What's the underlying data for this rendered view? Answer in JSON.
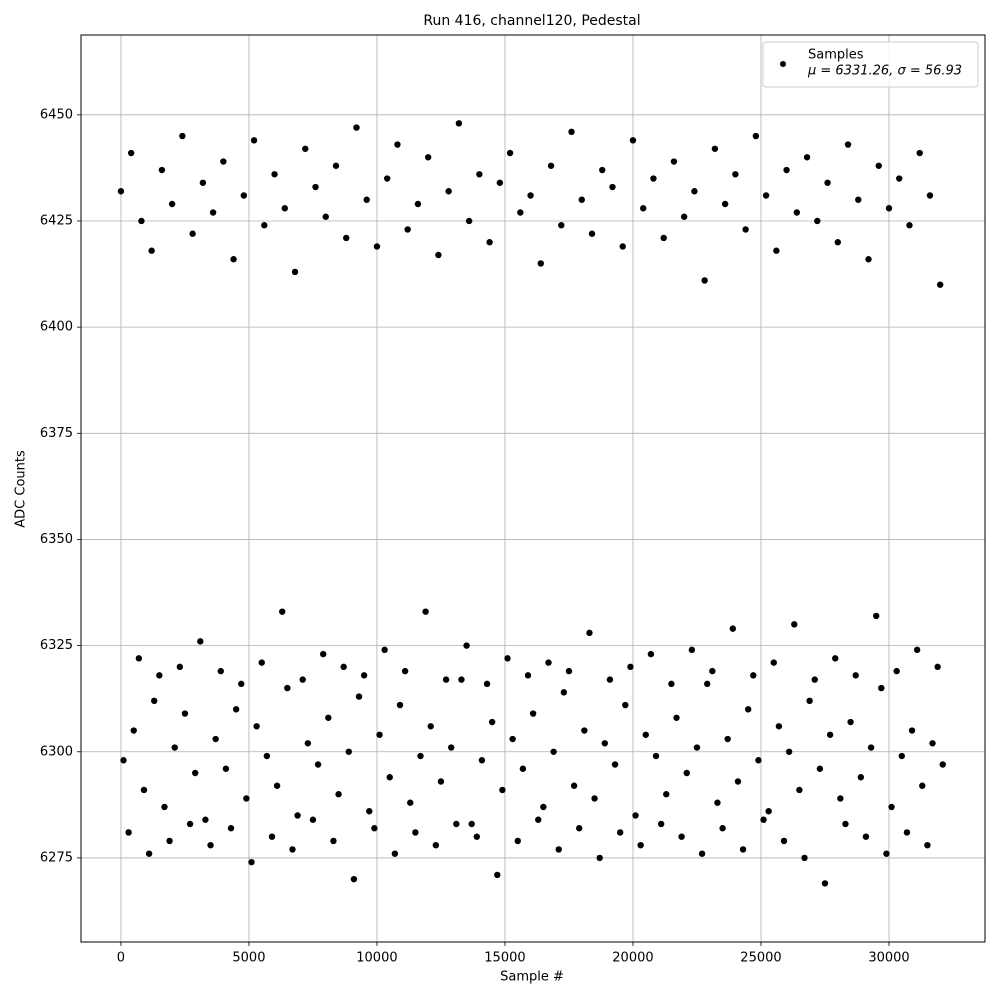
{
  "chart_data": {
    "type": "scatter",
    "title": "Run 416, channel120, Pedestal",
    "x_label": "Sample #",
    "y_label": "ADC Counts",
    "xlim": [
      -1560,
      33750
    ],
    "ylim": [
      6255.2,
      6468.8
    ],
    "xticks": [
      0,
      5000,
      10000,
      15000,
      20000,
      25000,
      30000
    ],
    "yticks": [
      6275,
      6300,
      6325,
      6350,
      6375,
      6400,
      6425,
      6450
    ],
    "grid": true,
    "legend": "upper right",
    "series": [
      {
        "name": "Samples",
        "legend_note": "μ = 6331.26, σ = 56.93",
        "color": "#000000",
        "x": [
          0,
          400,
          800,
          1200,
          1600,
          2000,
          2400,
          2800,
          3200,
          3600,
          4000,
          4400,
          4800,
          5200,
          5600,
          6000,
          6400,
          6800,
          7200,
          7600,
          8000,
          8400,
          8800,
          9200,
          9600,
          10000,
          10400,
          10800,
          11200,
          11600,
          12000,
          12400,
          12800,
          13200,
          13600,
          14000,
          14400,
          14800,
          15200,
          15600,
          16000,
          16400,
          16800,
          17200,
          17600,
          18000,
          18400,
          18800,
          19200,
          19600,
          20000,
          20400,
          20800,
          21200,
          21600,
          22000,
          22400,
          22800,
          23200,
          23600,
          24000,
          24400,
          24800,
          25200,
          25600,
          26000,
          26400,
          26800,
          27200,
          27600,
          28000,
          28400,
          28800,
          29200,
          29600,
          30000,
          30400,
          30800,
          31200,
          31600,
          32000,
          100,
          500,
          900,
          1300,
          1700,
          2100,
          2500,
          2900,
          3300,
          3700,
          4100,
          4500,
          4900,
          5300,
          5700,
          6100,
          6500,
          6900,
          7300,
          7700,
          8100,
          8500,
          8900,
          9300,
          9700,
          10100,
          10500,
          10900,
          11300,
          11700,
          12100,
          12500,
          12900,
          13300,
          13700,
          14100,
          14500,
          14900,
          15300,
          15700,
          16100,
          16500,
          16900,
          17300,
          17700,
          18100,
          18500,
          18900,
          19300,
          19700,
          20100,
          20500,
          20900,
          21300,
          21700,
          22100,
          22500,
          22900,
          23300,
          23700,
          24100,
          24500,
          24900,
          25300,
          25700,
          26100,
          26500,
          26900,
          27300,
          27700,
          28100,
          28500,
          28900,
          29300,
          29700,
          30100,
          30500,
          30900,
          31300,
          31700,
          32100,
          300,
          700,
          1100,
          1500,
          1900,
          2300,
          2700,
          3100,
          3500,
          3900,
          4300,
          4700,
          5100,
          5500,
          5900,
          6300,
          6700,
          7100,
          7500,
          7900,
          8300,
          8700,
          9100,
          9500,
          9900,
          10300,
          10700,
          11100,
          11500,
          11900,
          12300,
          12700,
          13100,
          13500,
          13900,
          14300,
          14700,
          15100,
          15500,
          15900,
          16300,
          16700,
          17100,
          17500,
          17900,
          18300,
          18700,
          19100,
          19500,
          19900,
          20300,
          20700,
          21100,
          21500,
          21900,
          22300,
          22700,
          23100,
          23500,
          23900,
          24300,
          24700,
          25100,
          25500,
          25900,
          26300,
          26700,
          27100,
          27500,
          27900,
          28300,
          28700,
          29100,
          29500,
          29900,
          30300,
          30700,
          31100,
          31500,
          31900
        ],
        "values": [
          6432,
          6441,
          6425,
          6418,
          6437,
          6429,
          6445,
          6422,
          6434,
          6427,
          6439,
          6416,
          6431,
          6444,
          6424,
          6436,
          6428,
          6413,
          6442,
          6433,
          6426,
          6438,
          6421,
          6447,
          6430,
          6419,
          6435,
          6443,
          6423,
          6429,
          6440,
          6417,
          6432,
          6448,
          6425,
          6436,
          6420,
          6434,
          6441,
          6427,
          6431,
          6415,
          6438,
          6424,
          6446,
          6430,
          6422,
          6437,
          6433,
          6419,
          6444,
          6428,
          6435,
          6421,
          6439,
          6426,
          6432,
          6411,
          6442,
          6429,
          6436,
          6423,
          6445,
          6431,
          6418,
          6437,
          6427,
          6440,
          6425,
          6434,
          6420,
          6443,
          6430,
          6416,
          6438,
          6428,
          6435,
          6424,
          6441,
          6431,
          6410,
          6298,
          6305,
          6291,
          6312,
          6287,
          6301,
          6309,
          6295,
          6284,
          6303,
          6296,
          6310,
          6289,
          6306,
          6299,
          6292,
          6315,
          6285,
          6302,
          6297,
          6308,
          6290,
          6300,
          6313,
          6286,
          6304,
          6294,
          6311,
          6288,
          6299,
          6306,
          6293,
          6301,
          6317,
          6283,
          6298,
          6307,
          6291,
          6303,
          6296,
          6309,
          6287,
          6300,
          6314,
          6292,
          6305,
          6289,
          6302,
          6297,
          6311,
          6285,
          6304,
          6299,
          6290,
          6308,
          6295,
          6301,
          6316,
          6288,
          6303,
          6293,
          6310,
          6298,
          6286,
          6306,
          6300,
          6291,
          6312,
          6296,
          6304,
          6289,
          6307,
          6294,
          6301,
          6315,
          6287,
          6299,
          6305,
          6292,
          6302,
          6297,
          6281,
          6322,
          6276,
          6318,
          6279,
          6320,
          6283,
          6326,
          6278,
          6319,
          6282,
          6316,
          6274,
          6321,
          6280,
          6333,
          6277,
          6317,
          6284,
          6323,
          6279,
          6320,
          6270,
          6318,
          6282,
          6324,
          6276,
          6319,
          6281,
          6333,
          6278,
          6317,
          6283,
          6325,
          6280,
          6316,
          6271,
          6322,
          6279,
          6318,
          6284,
          6321,
          6277,
          6319,
          6282,
          6328,
          6275,
          6317,
          6281,
          6320,
          6278,
          6323,
          6283,
          6316,
          6280,
          6324,
          6276,
          6319,
          6282,
          6329,
          6277,
          6318,
          6284,
          6321,
          6279,
          6330,
          6275,
          6317,
          6269,
          6322,
          6283,
          6318,
          6280,
          6332,
          6276,
          6319,
          6281,
          6324,
          6278,
          6320
        ]
      }
    ]
  }
}
